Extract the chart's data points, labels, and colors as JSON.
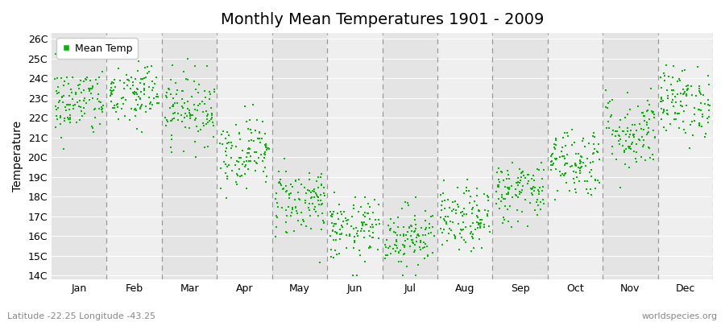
{
  "title": "Monthly Mean Temperatures 1901 - 2009",
  "ylabel": "Temperature",
  "subtitle_left": "Latitude -22.25 Longitude -43.25",
  "subtitle_right": "worldspecies.org",
  "months": [
    "Jan",
    "Feb",
    "Mar",
    "Apr",
    "May",
    "Jun",
    "Jul",
    "Aug",
    "Sep",
    "Oct",
    "Nov",
    "Dec"
  ],
  "ytick_labels": [
    "14C",
    "15C",
    "16C",
    "17C",
    "18C",
    "19C",
    "20C",
    "21C",
    "22C",
    "23C",
    "24C",
    "25C",
    "26C"
  ],
  "ytick_values": [
    14,
    15,
    16,
    17,
    18,
    19,
    20,
    21,
    22,
    23,
    24,
    25,
    26
  ],
  "ylim": [
    13.8,
    26.3
  ],
  "dot_color": "#00BB00",
  "bg_color_dark": "#E4E4E4",
  "bg_color_light": "#EFEFEF",
  "legend_label": "Mean Temp",
  "num_years": 109,
  "monthly_means": [
    22.8,
    23.2,
    22.5,
    20.3,
    17.8,
    16.3,
    16.0,
    16.8,
    18.3,
    19.8,
    21.3,
    22.8
  ],
  "monthly_stds": [
    0.9,
    0.9,
    0.9,
    0.9,
    0.9,
    0.8,
    0.8,
    0.8,
    0.8,
    0.9,
    1.0,
    0.9
  ],
  "dot_size": 3,
  "title_fontsize": 14,
  "axis_fontsize": 9,
  "ylabel_fontsize": 10
}
